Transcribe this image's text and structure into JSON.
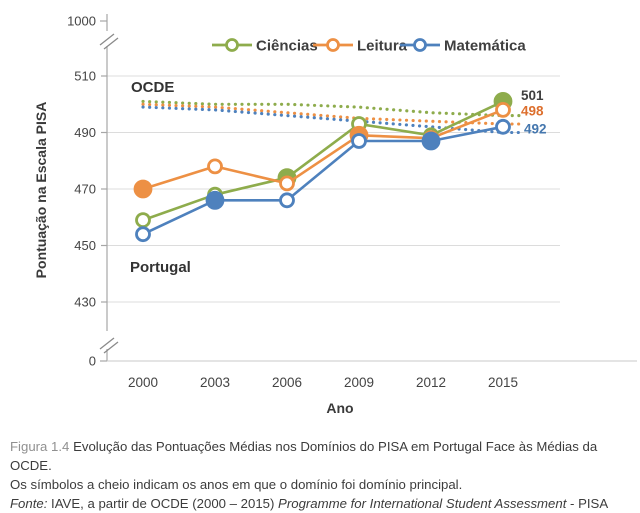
{
  "figure": {
    "y_axis": {
      "title": "Pontuação na Escala PISA",
      "top_tick": "1000",
      "bottom_tick": "0",
      "ticks": [
        "510",
        "490",
        "470",
        "450",
        "430"
      ]
    },
    "x_axis": {
      "title": "Ano",
      "ticks": [
        "2000",
        "2003",
        "2006",
        "2009",
        "2012",
        "2015"
      ]
    },
    "legend": [
      {
        "label": "Ciências",
        "color": "#8EAC4C"
      },
      {
        "label": "Leitura",
        "color": "#ED9044"
      },
      {
        "label": "Matemática",
        "color": "#4E81BD"
      }
    ],
    "annotations": {
      "ocde": "OCDE",
      "portugal": "Portugal"
    },
    "end_labels": [
      {
        "text": "501",
        "color": "#3f3f3f"
      },
      {
        "text": "498",
        "color": "#DD6F2D"
      },
      {
        "text": "492",
        "color": "#4577AE"
      }
    ]
  },
  "chart_data": {
    "type": "line",
    "x": [
      2000,
      2003,
      2006,
      2009,
      2012,
      2015
    ],
    "xlabel": "Ano",
    "ylabel": "Pontuação na Escala PISA",
    "ylim_main": [
      425,
      519
    ],
    "yticks": [
      510,
      490,
      470,
      450,
      430
    ],
    "broken_axis_ticks": [
      0,
      1000
    ],
    "grid": "horizontal",
    "legend_position": "top",
    "annotations": [
      "OCDE",
      "Portugal"
    ],
    "series": [
      {
        "id": "ciencias-portugal",
        "name": "Ciências (Portugal)",
        "group": "Portugal",
        "style": "solid",
        "color": "#8EAC4C",
        "values": [
          459,
          468,
          474,
          493,
          489,
          501
        ],
        "filled_marker_years": [
          2006,
          2015
        ]
      },
      {
        "id": "leitura-portugal",
        "name": "Leitura (Portugal)",
        "group": "Portugal",
        "style": "solid",
        "color": "#ED9044",
        "values": [
          470,
          478,
          472,
          489,
          488,
          498
        ],
        "filled_marker_years": [
          2000,
          2009
        ]
      },
      {
        "id": "matematica-portugal",
        "name": "Matemática (Portugal)",
        "group": "Portugal",
        "style": "solid",
        "color": "#4E81BD",
        "values": [
          454,
          466,
          466,
          487,
          487,
          492
        ],
        "filled_marker_years": [
          2003,
          2012
        ]
      },
      {
        "id": "ciencias-ocde",
        "name": "Ciências (OCDE)",
        "group": "OCDE",
        "style": "dotted",
        "color": "#8EAC4C",
        "values": [
          501,
          500,
          500,
          499,
          497,
          496
        ]
      },
      {
        "id": "leitura-ocde",
        "name": "Leitura (OCDE)",
        "group": "OCDE",
        "style": "dotted",
        "color": "#ED9044",
        "values": [
          500,
          499,
          497,
          495,
          494,
          493
        ]
      },
      {
        "id": "matematica-ocde",
        "name": "Matemática (OCDE)",
        "group": "OCDE",
        "style": "dotted",
        "color": "#4E81BD",
        "values": [
          499,
          498,
          496,
          494,
          492,
          490
        ]
      }
    ],
    "end_labels": [
      "501",
      "498",
      "492"
    ]
  },
  "caption": {
    "figure_label": "Figura 1.4",
    "line1": "Evolução das Pontuações Médias nos Domínios do PISA em Portugal Face às Médias da OCDE.",
    "line2": "Os símbolos a cheio indicam os anos em que o domínio foi domínio principal.",
    "fonte_label": "Fonte:",
    "fonte_pre": " IAVE, a partir de OCDE (2000 – 2015) ",
    "fonte_italic": "Programme for International Student Assessment",
    "fonte_post": " - PISA"
  }
}
